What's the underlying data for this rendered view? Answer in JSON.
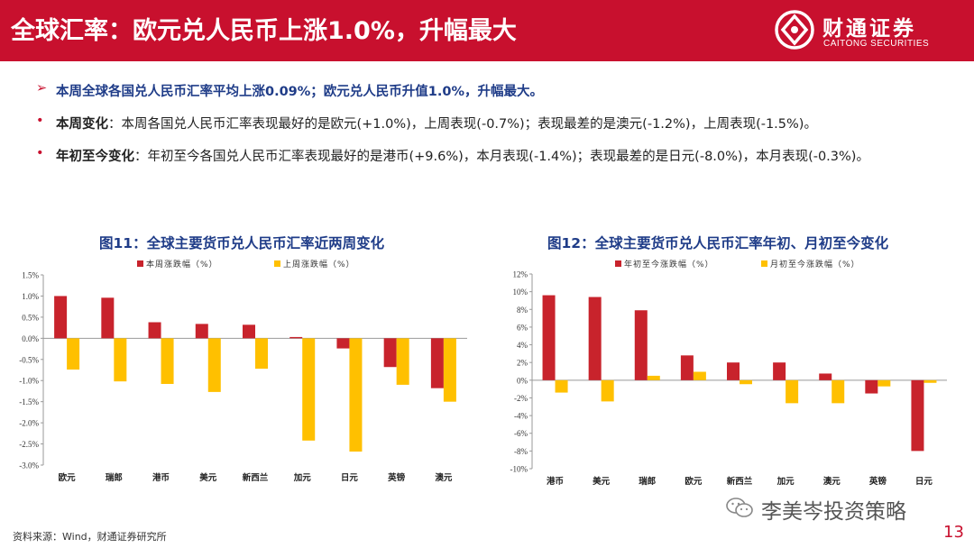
{
  "header": {
    "title": "全球汇率：欧元兑人民币上涨1.0%，升幅最大",
    "logo_cn": "财通证券",
    "logo_en": "CAITONG SECURITIES"
  },
  "bullets": [
    {
      "mark": "➢",
      "text": "本周全球各国兑人民币汇率平均上涨0.09%；欧元兑人民币升值1.0%，升幅最大。"
    },
    {
      "mark": "•",
      "label": "本周变化",
      "text": "：本周各国兑人民币汇率表现最好的是欧元(+1.0%)，上周表现(-0.7%)；表现最差的是澳元(-1.2%)，上周表现(-1.5%)。"
    },
    {
      "mark": "•",
      "label": "年初至今变化",
      "text": "：年初至今各国兑人民币汇率表现最好的是港币(+9.6%)，本月表现(-1.4%)；表现最差的是日元(-8.0%)，本月表现(-0.3%)。"
    }
  ],
  "colors": {
    "brand": "#c8102e",
    "series_red": "#c8232c",
    "series_gold": "#ffc000",
    "title_blue": "#1f3c88"
  },
  "chart_data": [
    {
      "type": "bar",
      "title": "图11：全球主要货币兑人民币汇率近两周变化",
      "categories": [
        "欧元",
        "瑞郎",
        "港币",
        "美元",
        "新西兰",
        "加元",
        "日元",
        "英镑",
        "澳元"
      ],
      "series": [
        {
          "name": "本周涨跌幅（%）",
          "values": [
            1.0,
            0.96,
            0.38,
            0.34,
            0.32,
            0.03,
            -0.24,
            -0.68,
            -1.18
          ]
        },
        {
          "name": "上周涨跌幅（%）",
          "values": [
            -0.74,
            -1.02,
            -1.08,
            -1.27,
            -0.72,
            -2.42,
            -2.68,
            -1.1,
            -1.5
          ]
        }
      ],
      "yticks": [
        "1.5%",
        "1.0%",
        "0.5%",
        "0.0%",
        "-0.5%",
        "-1.0%",
        "-1.5%",
        "-2.0%",
        "-2.5%",
        "-3.0%"
      ],
      "ylim": [
        -3.0,
        1.5
      ],
      "legend": "top"
    },
    {
      "type": "bar",
      "title": "图12：全球主要货币兑人民币汇率年初、月初至今变化",
      "categories": [
        "港币",
        "美元",
        "瑞郎",
        "欧元",
        "新西兰",
        "加元",
        "澳元",
        "英镑",
        "日元"
      ],
      "series": [
        {
          "name": "年初至今涨跌幅（%）",
          "values": [
            9.6,
            9.4,
            7.9,
            2.8,
            2.0,
            2.0,
            0.75,
            -1.5,
            -8.0
          ]
        },
        {
          "name": "月初至今涨跌幅（%）",
          "values": [
            -1.4,
            -2.4,
            0.5,
            0.95,
            -0.45,
            -2.6,
            -2.6,
            -0.7,
            -0.3
          ]
        }
      ],
      "yticks": [
        "12%",
        "10%",
        "8%",
        "6%",
        "4%",
        "2%",
        "0%",
        "-2%",
        "-4%",
        "-6%",
        "-8%",
        "-10%"
      ],
      "ylim": [
        -10,
        12
      ],
      "legend": "top"
    }
  ],
  "footer": {
    "source": "资料来源：Wind，财通证券研究所",
    "watermark": "李美岑投资策略",
    "page": "13"
  }
}
